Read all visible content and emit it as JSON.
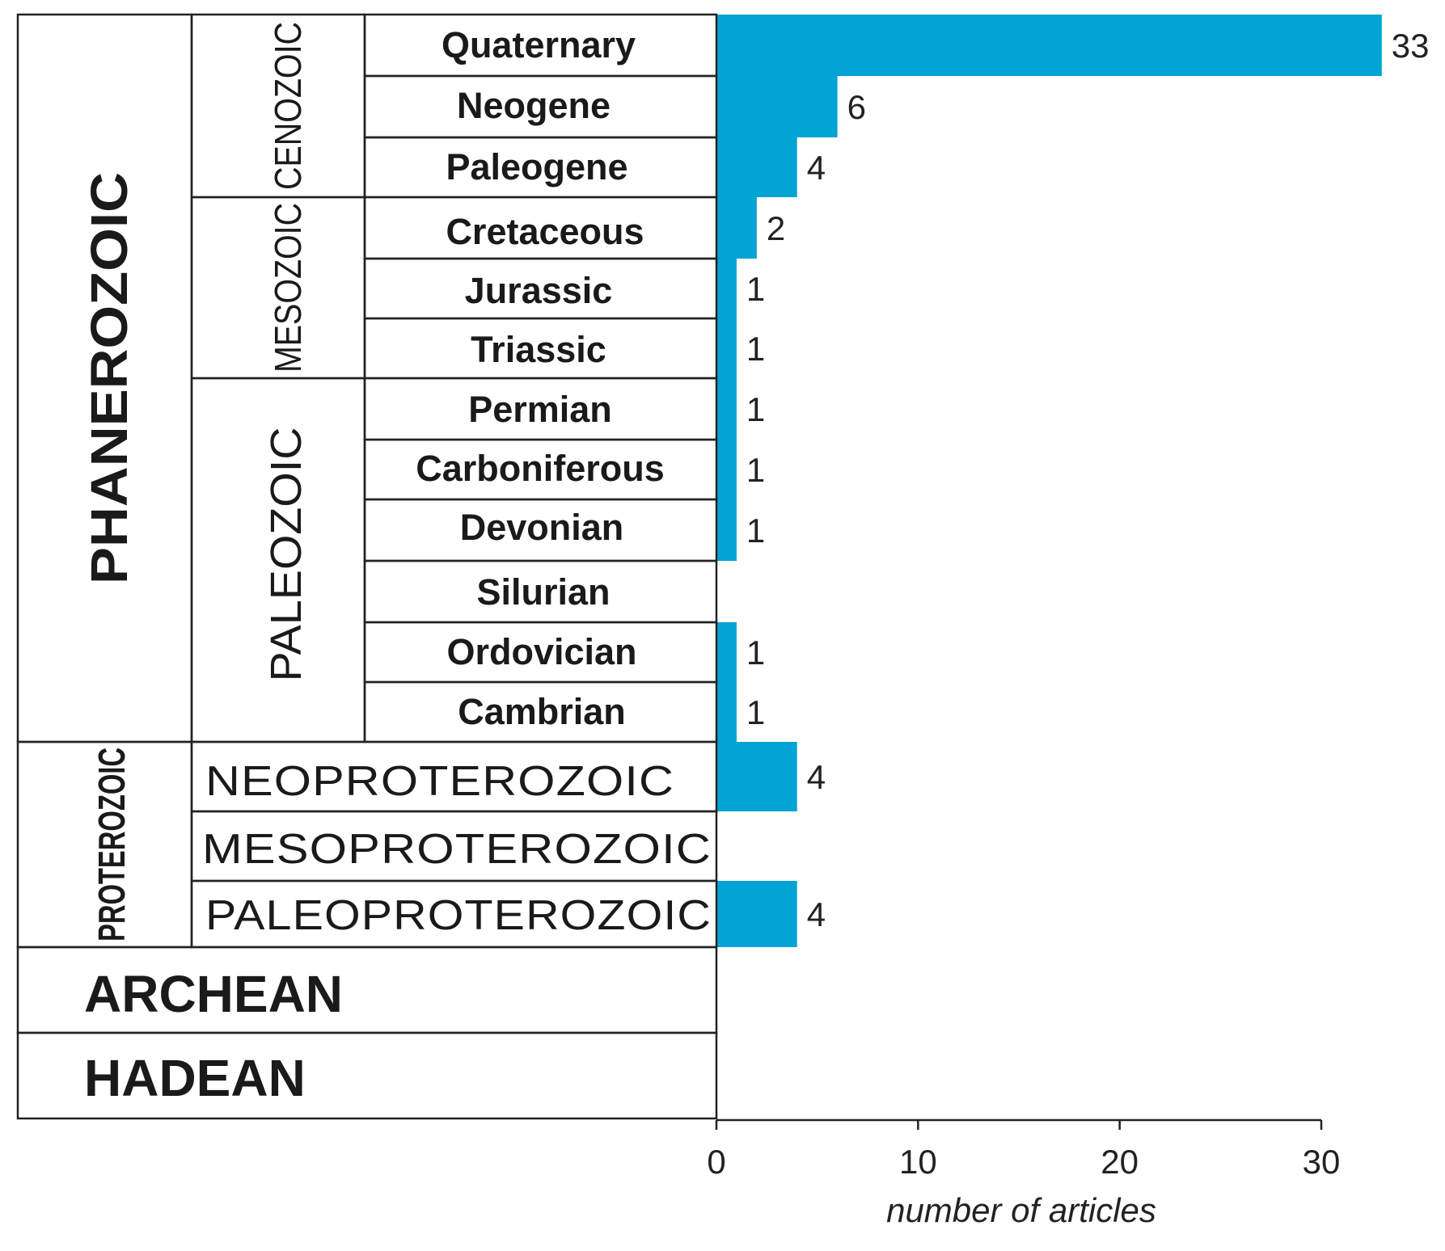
{
  "chart_data": {
    "type": "bar",
    "orientation": "horizontal",
    "bar_color": "#00a3d4",
    "categories": [
      "Quaternary",
      "Neogene",
      "Paleogene",
      "Cretaceous",
      "Jurassic",
      "Triassic",
      "Permian",
      "Carboniferous",
      "Devonian",
      "Silurian",
      "Ordovician",
      "Cambrian",
      "NEOPROTEROZOIC",
      "MESOPROTEROZOIC",
      "PALEOPROTEROZOIC",
      "ARCHEAN",
      "HADEAN"
    ],
    "values": [
      33,
      6,
      4,
      2,
      1,
      1,
      1,
      1,
      1,
      0,
      1,
      1,
      4,
      0,
      4,
      0,
      0
    ],
    "value_labels": [
      "33",
      "6",
      "4",
      "2",
      "1",
      "1",
      "1",
      "1",
      "1",
      "",
      "1",
      "1",
      "4",
      "",
      "4",
      "",
      ""
    ],
    "eons": [
      "PHANEROZOIC",
      "PROTEROZOIC"
    ],
    "eras": [
      "CENOZOIC",
      "MESOZOIC",
      "PALEOZOIC"
    ],
    "xlabel": "number of articles",
    "xlim": [
      0,
      30
    ],
    "x_ticks": [
      "0",
      "10",
      "20",
      "30"
    ],
    "grid": false
  }
}
